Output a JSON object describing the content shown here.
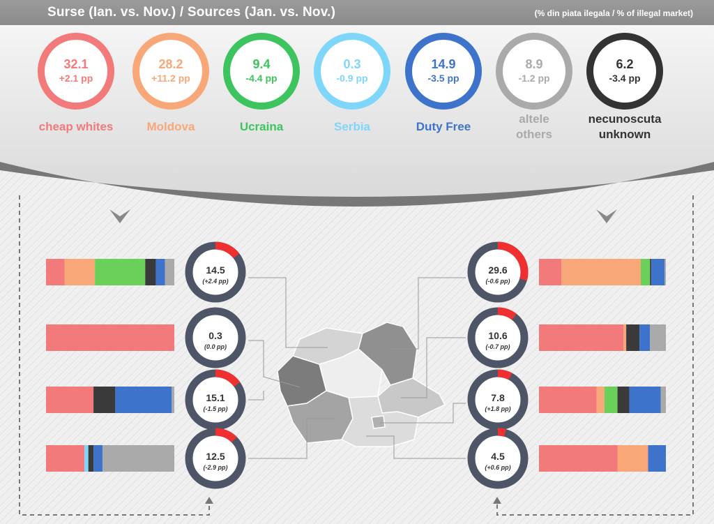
{
  "header": {
    "title": "Surse (Ian. vs. Nov.) / Sources (Jan. vs. Nov.)",
    "subtitle": "(% din piata ilegala / % of illegal market)"
  },
  "sources": [
    {
      "value": "32.1",
      "change": "+2.1 pp",
      "label1": "cheap whites",
      "label2": "",
      "color": "#f27a7a"
    },
    {
      "value": "28.2",
      "change": "+11.2 pp",
      "label1": "Moldova",
      "label2": "",
      "color": "#f8a878"
    },
    {
      "value": "9.4",
      "change": "-4.4 pp",
      "label1": "Ucraina",
      "label2": "",
      "color": "#3ec45e"
    },
    {
      "value": "0.3",
      "change": "-0.9 pp",
      "label1": "Serbia",
      "label2": "",
      "color": "#7fd6fb"
    },
    {
      "value": "14.9",
      "change": "-3.5 pp",
      "label1": "Duty Free",
      "label2": "",
      "color": "#3e73cc"
    },
    {
      "value": "8.9",
      "change": "-1.2 pp",
      "label1": "altele",
      "label2": "others",
      "color": "#aaaaaa"
    },
    {
      "value": "6.2",
      "change": "-3.4 pp",
      "label1": "necunoscuta",
      "label2": "unknown",
      "color": "#333333"
    }
  ],
  "chart_data": {
    "type": "bar",
    "series_colors": [
      "#f27a7a",
      "#f8a878",
      "#6ad05a",
      "#7fd6fb",
      "#3a3a3a",
      "#3e73cc",
      "#aaaaaa"
    ],
    "regions_left": [
      {
        "value": 14.5,
        "change": "(+2.4 pp)",
        "shares": [
          14,
          23,
          38,
          0,
          8,
          7,
          7
        ]
      },
      {
        "value": 0.3,
        "change": "(0.0 pp)",
        "shares": [
          100,
          0,
          0,
          0,
          0,
          0,
          0
        ]
      },
      {
        "value": 15.1,
        "change": "(-1.5 pp)",
        "shares": [
          37,
          0,
          0,
          0,
          17,
          44,
          2
        ]
      },
      {
        "value": 12.5,
        "change": "(-2.9 pp)",
        "shares": [
          30,
          0,
          0,
          3,
          4,
          7,
          56
        ]
      }
    ],
    "regions_right": [
      {
        "value": 29.6,
        "change": "(-0.6 pp)",
        "shares": [
          17,
          60,
          7,
          0,
          1,
          10,
          1
        ]
      },
      {
        "value": 10.6,
        "change": "(-0.7 pp)",
        "shares": [
          64,
          2,
          0,
          0,
          10,
          8,
          12
        ]
      },
      {
        "value": 7.8,
        "change": "(+1.8 pp)",
        "shares": [
          44,
          6,
          10,
          0,
          9,
          24,
          4
        ]
      },
      {
        "value": 4.5,
        "change": "(+0.6 pp)",
        "shares": [
          62,
          24,
          0,
          0,
          0,
          14,
          0
        ]
      }
    ]
  }
}
